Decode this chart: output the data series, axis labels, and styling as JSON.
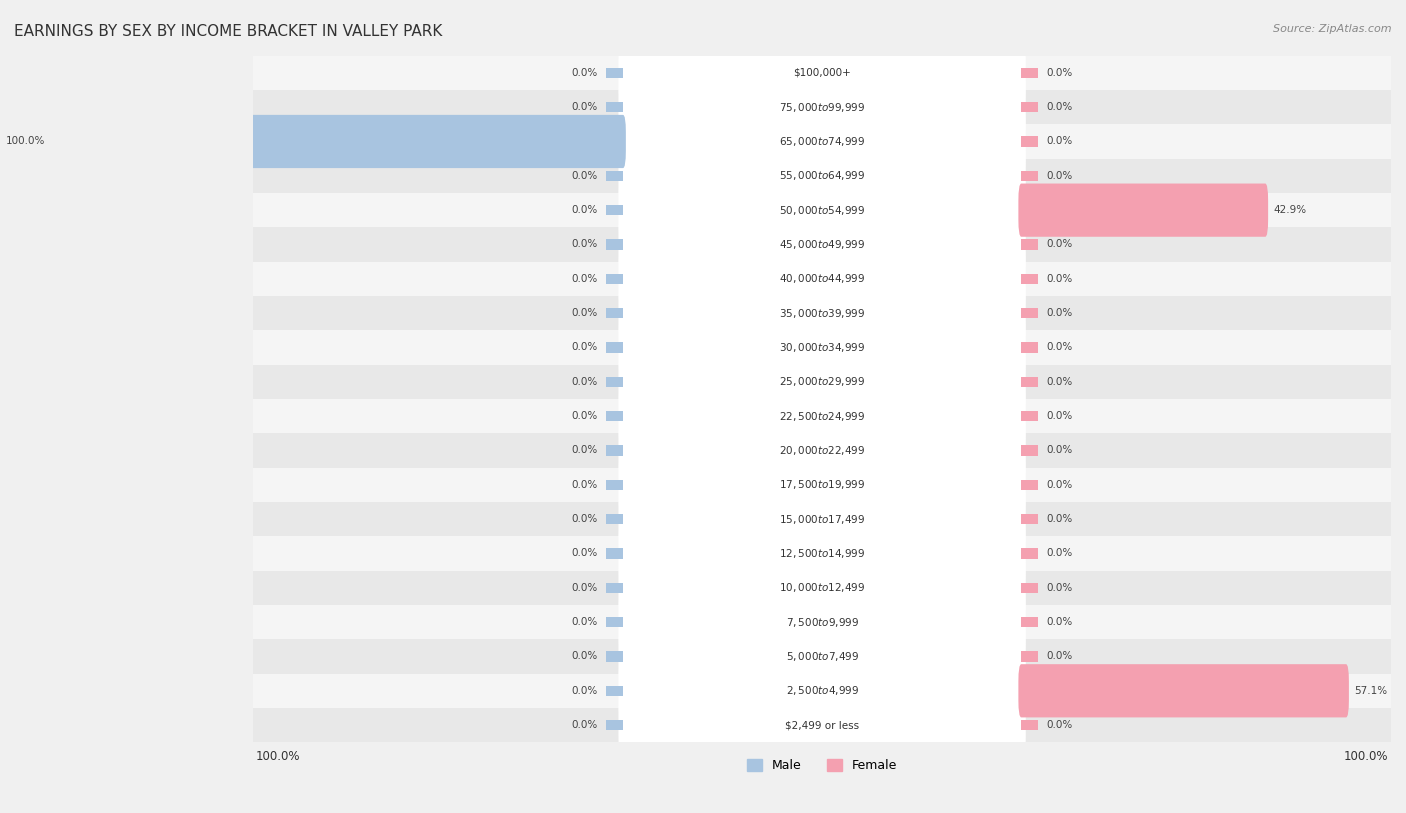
{
  "title": "EARNINGS BY SEX BY INCOME BRACKET IN VALLEY PARK",
  "source": "Source: ZipAtlas.com",
  "categories": [
    "$2,499 or less",
    "$2,500 to $4,999",
    "$5,000 to $7,499",
    "$7,500 to $9,999",
    "$10,000 to $12,499",
    "$12,500 to $14,999",
    "$15,000 to $17,499",
    "$17,500 to $19,999",
    "$20,000 to $22,499",
    "$22,500 to $24,999",
    "$25,000 to $29,999",
    "$30,000 to $34,999",
    "$35,000 to $39,999",
    "$40,000 to $44,999",
    "$45,000 to $49,999",
    "$50,000 to $54,999",
    "$55,000 to $64,999",
    "$65,000 to $74,999",
    "$75,000 to $99,999",
    "$100,000+"
  ],
  "male_values": [
    0.0,
    0.0,
    0.0,
    0.0,
    0.0,
    0.0,
    0.0,
    0.0,
    0.0,
    0.0,
    0.0,
    0.0,
    0.0,
    0.0,
    0.0,
    0.0,
    0.0,
    100.0,
    0.0,
    0.0
  ],
  "female_values": [
    0.0,
    57.1,
    0.0,
    0.0,
    0.0,
    0.0,
    0.0,
    0.0,
    0.0,
    0.0,
    0.0,
    0.0,
    0.0,
    0.0,
    0.0,
    42.9,
    0.0,
    0.0,
    0.0,
    0.0
  ],
  "male_color": "#a8c4e0",
  "female_color": "#f4a0b0",
  "male_label": "Male",
  "female_label": "Female",
  "bg_color": "#f0f0f0",
  "bar_bg_color": "#ffffff",
  "xlim": 100.0,
  "bar_height": 0.55,
  "row_bg_colors": [
    "#e8e8e8",
    "#f5f5f5"
  ]
}
